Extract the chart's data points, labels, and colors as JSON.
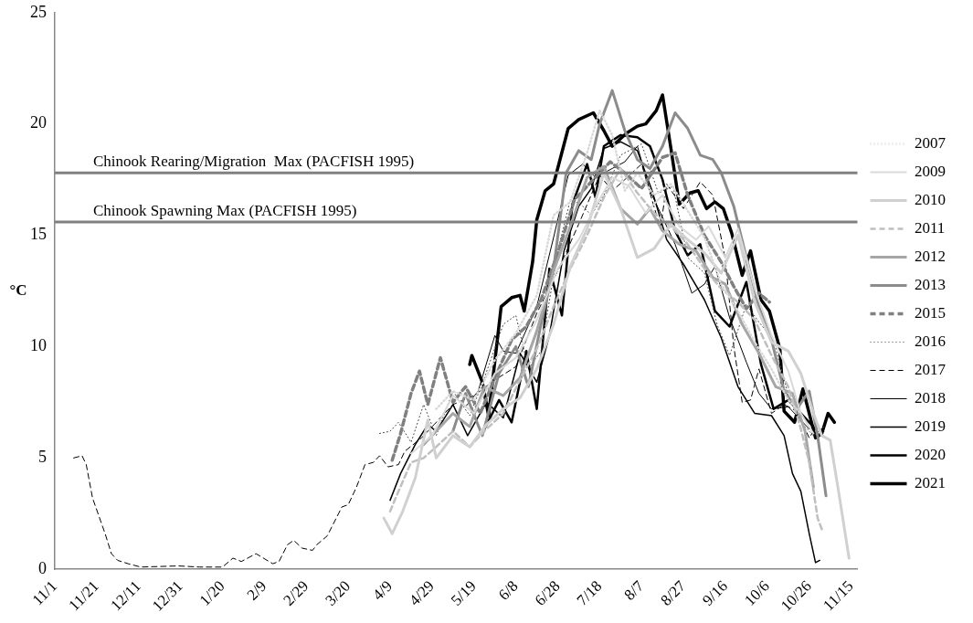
{
  "chart_data": {
    "type": "line",
    "ylabel": "°C",
    "xlim": [
      "2019-11-01",
      "2020-11-18"
    ],
    "ylim": [
      0,
      25
    ],
    "yticks": [
      0,
      5,
      10,
      15,
      20,
      25
    ],
    "xticks": [
      {
        "value": "2019-11-01",
        "label": "11/1"
      },
      {
        "value": "2019-11-21",
        "label": "11/21"
      },
      {
        "value": "2019-12-11",
        "label": "12/11"
      },
      {
        "value": "2019-12-31",
        "label": "12/31"
      },
      {
        "value": "2020-01-20",
        "label": "1/20"
      },
      {
        "value": "2020-02-09",
        "label": "2/9"
      },
      {
        "value": "2020-02-29",
        "label": "2/29"
      },
      {
        "value": "2020-03-20",
        "label": "3/20"
      },
      {
        "value": "2020-04-09",
        "label": "4/9"
      },
      {
        "value": "2020-04-29",
        "label": "4/29"
      },
      {
        "value": "2020-05-19",
        "label": "5/19"
      },
      {
        "value": "2020-06-08",
        "label": "6/8"
      },
      {
        "value": "2020-06-28",
        "label": "6/28"
      },
      {
        "value": "2020-07-18",
        "label": "7/18"
      },
      {
        "value": "2020-08-07",
        "label": "8/7"
      },
      {
        "value": "2020-08-27",
        "label": "8/27"
      },
      {
        "value": "2020-09-16",
        "label": "9/16"
      },
      {
        "value": "2020-10-06",
        "label": "10/6"
      },
      {
        "value": "2020-10-26",
        "label": "10/26"
      },
      {
        "value": "2020-11-15",
        "label": "11/15"
      }
    ],
    "grid": false,
    "legend": "right",
    "marker": "none",
    "ref_lines": [
      {
        "axis": "y",
        "value": 17.8,
        "label": "Chinook Rearing/Migration  Max (PACFISH 1995)",
        "color": "#808080"
      },
      {
        "axis": "y",
        "value": 15.6,
        "label": "Chinook Spawning Max (PACFISH 1995)",
        "color": "#808080"
      }
    ],
    "series": [
      {
        "name": "2007",
        "color": "#d9d9d9",
        "line_style": "dotted",
        "x": [
          "2020-05-01",
          "2020-05-09",
          "2020-05-19",
          "2020-05-29",
          "2020-06-08",
          "2020-06-18",
          "2020-06-26",
          "2020-07-04",
          "2020-07-12",
          "2020-07-18",
          "2020-07-24",
          "2020-07-30",
          "2020-08-05",
          "2020-08-13",
          "2020-08-21",
          "2020-08-29",
          "2020-09-06",
          "2020-09-14",
          "2020-09-22",
          "2020-09-30",
          "2020-10-08",
          "2020-10-16",
          "2020-10-22"
        ],
        "values": [
          7.2,
          8.0,
          7.6,
          9.4,
          10.6,
          12.3,
          15.9,
          16.5,
          18.7,
          20.6,
          19.5,
          17.0,
          17.8,
          16.8,
          17.3,
          16.1,
          14.9,
          12.8,
          11.6,
          10.2,
          9.0,
          7.6,
          7.0
        ]
      },
      {
        "name": "2009",
        "color": "#d9d9d9",
        "line_style": "solid",
        "x": [
          "2020-04-19",
          "2020-04-29",
          "2020-05-09",
          "2020-05-19",
          "2020-05-29",
          "2020-06-08",
          "2020-06-18",
          "2020-06-28",
          "2020-07-08",
          "2020-07-16",
          "2020-07-24",
          "2020-08-01",
          "2020-08-09",
          "2020-08-17",
          "2020-08-25",
          "2020-09-02",
          "2020-09-08",
          "2020-09-16",
          "2020-09-22",
          "2020-09-30",
          "2020-10-08",
          "2020-10-16",
          "2020-10-22",
          "2020-10-28"
        ],
        "values": [
          5.2,
          6.0,
          7.8,
          7.0,
          8.8,
          9.5,
          11.2,
          13.5,
          14.8,
          16.3,
          17.6,
          17.2,
          16.0,
          16.8,
          15.4,
          14.8,
          15.4,
          14.0,
          15.3,
          12.6,
          10.5,
          8.9,
          7.0,
          6.1
        ]
      },
      {
        "name": "2010",
        "color": "#d0d0d0",
        "line_style": "solid",
        "x": [
          "2020-04-06",
          "2020-04-10",
          "2020-04-15",
          "2020-04-21",
          "2020-04-27",
          "2020-05-01",
          "2020-05-09",
          "2020-05-17",
          "2020-05-25",
          "2020-06-02",
          "2020-06-10",
          "2020-06-18",
          "2020-06-26",
          "2020-07-04",
          "2020-07-12",
          "2020-07-20",
          "2020-07-28",
          "2020-08-05",
          "2020-08-13",
          "2020-08-21",
          "2020-08-29",
          "2020-09-06",
          "2020-09-14",
          "2020-09-22",
          "2020-09-30",
          "2020-10-08",
          "2020-10-16",
          "2020-10-22",
          "2020-10-28",
          "2020-11-01",
          "2020-11-05",
          "2020-11-09",
          "2020-11-14"
        ],
        "values": [
          2.3,
          1.6,
          2.6,
          4.1,
          6.7,
          5.0,
          6.0,
          5.5,
          6.5,
          7.2,
          7.7,
          9.0,
          11.0,
          13.6,
          15.3,
          17.8,
          16.2,
          14.0,
          14.4,
          15.5,
          14.8,
          14.2,
          13.3,
          15.0,
          12.0,
          10.2,
          9.8,
          8.8,
          7.0,
          6.0,
          5.8,
          3.5,
          0.5
        ]
      },
      {
        "name": "2011",
        "color": "#bfbfbf",
        "line_style": "dashed",
        "x": [
          "2020-04-09",
          "2020-04-13",
          "2020-04-19",
          "2020-04-25",
          "2020-05-01",
          "2020-05-09",
          "2020-05-17",
          "2020-05-25",
          "2020-06-02",
          "2020-06-10",
          "2020-06-18",
          "2020-06-26",
          "2020-07-04",
          "2020-07-12",
          "2020-07-20",
          "2020-07-28",
          "2020-08-05",
          "2020-08-13",
          "2020-08-21",
          "2020-08-29",
          "2020-09-06",
          "2020-09-14",
          "2020-09-22",
          "2020-09-30",
          "2020-10-08",
          "2020-10-16",
          "2020-10-22",
          "2020-10-26",
          "2020-10-30",
          "2020-11-01"
        ],
        "values": [
          2.6,
          3.5,
          4.8,
          5.0,
          5.5,
          6.2,
          5.5,
          6.3,
          7.0,
          8.5,
          9.9,
          11.8,
          13.5,
          15.0,
          16.7,
          18.0,
          16.9,
          16.0,
          15.4,
          14.6,
          13.5,
          12.6,
          12.0,
          11.2,
          9.6,
          8.2,
          6.3,
          4.8,
          2.3,
          1.8
        ]
      },
      {
        "name": "2012",
        "color": "#a6a6a6",
        "line_style": "solid",
        "x": [
          "2020-04-25",
          "2020-05-01",
          "2020-05-09",
          "2020-05-17",
          "2020-05-24",
          "2020-06-02",
          "2020-06-10",
          "2020-06-18",
          "2020-06-26",
          "2020-07-04",
          "2020-07-12",
          "2020-07-20",
          "2020-07-28",
          "2020-08-05",
          "2020-08-11",
          "2020-08-17",
          "2020-08-25",
          "2020-09-02",
          "2020-09-10",
          "2020-09-16",
          "2020-09-24",
          "2020-10-02",
          "2020-10-10",
          "2020-10-18",
          "2020-10-24",
          "2020-10-28"
        ],
        "values": [
          5.6,
          6.2,
          7.0,
          6.4,
          8.2,
          7.8,
          8.6,
          10.7,
          13.4,
          15.4,
          17.6,
          18.1,
          16.2,
          15.5,
          16.2,
          15.2,
          14.6,
          14.3,
          13.1,
          12.8,
          11.0,
          9.7,
          8.2,
          7.9,
          6.2,
          3.7
        ]
      },
      {
        "name": "2013",
        "color": "#8c8c8c",
        "line_style": "solid",
        "x": [
          "2020-05-09",
          "2020-05-15",
          "2020-05-23",
          "2020-05-31",
          "2020-06-08",
          "2020-06-14",
          "2020-06-20",
          "2020-06-26",
          "2020-07-02",
          "2020-07-08",
          "2020-07-14",
          "2020-07-18",
          "2020-07-24",
          "2020-07-30",
          "2020-08-05",
          "2020-08-11",
          "2020-08-17",
          "2020-08-23",
          "2020-08-29",
          "2020-09-04",
          "2020-09-10",
          "2020-09-14",
          "2020-09-20",
          "2020-09-26",
          "2020-10-02",
          "2020-10-08",
          "2020-10-14",
          "2020-10-20",
          "2020-10-26",
          "2020-10-30",
          "2020-11-03"
        ],
        "values": [
          6.2,
          7.9,
          6.0,
          8.8,
          10.0,
          8.2,
          11.0,
          13.5,
          17.8,
          18.8,
          18.4,
          20.0,
          21.5,
          19.7,
          18.4,
          18.0,
          19.0,
          20.5,
          19.8,
          18.6,
          18.4,
          17.8,
          16.3,
          14.0,
          11.8,
          10.3,
          8.0,
          7.2,
          8.0,
          6.0,
          3.3
        ]
      },
      {
        "name": "2015",
        "color": "#808080",
        "line_style": "dashed",
        "x": [
          "2020-04-10",
          "2020-04-14",
          "2020-04-19",
          "2020-04-23",
          "2020-04-27",
          "2020-05-03",
          "2020-05-09",
          "2020-05-15",
          "2020-05-22",
          "2020-05-29",
          "2020-06-06",
          "2020-06-13",
          "2020-06-20",
          "2020-06-28",
          "2020-07-06",
          "2020-07-14",
          "2020-07-23",
          "2020-07-30",
          "2020-08-07",
          "2020-08-17",
          "2020-08-23",
          "2020-08-29",
          "2020-09-06",
          "2020-09-14",
          "2020-09-20",
          "2020-09-26",
          "2020-10-02",
          "2020-10-07"
        ],
        "values": [
          4.9,
          6.1,
          7.9,
          8.9,
          7.4,
          9.5,
          7.5,
          8.2,
          7.0,
          8.6,
          10.3,
          10.9,
          12.1,
          14.2,
          16.6,
          17.4,
          18.3,
          17.8,
          17.1,
          18.5,
          18.7,
          16.8,
          15.0,
          13.8,
          12.7,
          11.7,
          12.4,
          12.0
        ]
      },
      {
        "name": "2016",
        "color": "#404040",
        "line_style": "dotted",
        "x": [
          "2020-04-04",
          "2020-04-09",
          "2020-04-13",
          "2020-04-19",
          "2020-04-25",
          "2020-05-01",
          "2020-05-09",
          "2020-05-17",
          "2020-05-24",
          "2020-06-02",
          "2020-06-08",
          "2020-06-14",
          "2020-06-20",
          "2020-06-28",
          "2020-07-04",
          "2020-07-09",
          "2020-07-14",
          "2020-07-20",
          "2020-07-28",
          "2020-08-07",
          "2020-08-15",
          "2020-08-22",
          "2020-08-29",
          "2020-09-06",
          "2020-09-12",
          "2020-09-18",
          "2020-09-26",
          "2020-10-02",
          "2020-10-09",
          "2020-10-16",
          "2020-10-22",
          "2020-10-28",
          "2020-11-02"
        ],
        "values": [
          6.1,
          6.2,
          6.6,
          5.7,
          7.4,
          6.0,
          8.0,
          6.9,
          8.6,
          11.0,
          11.4,
          9.0,
          9.8,
          14.3,
          16.6,
          16.4,
          15.9,
          16.8,
          18.6,
          19.1,
          16.9,
          17.2,
          14.0,
          13.3,
          11.0,
          9.6,
          11.9,
          11.1,
          10.3,
          7.8,
          6.6,
          6.0,
          6.4
        ]
      },
      {
        "name": "2017",
        "color": "#000000",
        "line_style": "dashed",
        "x": [
          "2019-11-10",
          "2019-11-14",
          "2019-11-16",
          "2019-11-19",
          "2019-11-25",
          "2019-11-28",
          "2019-12-01",
          "2019-12-06",
          "2019-12-12",
          "2019-12-30",
          "2020-01-09",
          "2020-01-20",
          "2020-01-25",
          "2020-01-29",
          "2020-02-05",
          "2020-02-13",
          "2020-02-16",
          "2020-02-20",
          "2020-02-23",
          "2020-02-27",
          "2020-03-03",
          "2020-03-05",
          "2020-03-10",
          "2020-03-17",
          "2020-03-20",
          "2020-03-24",
          "2020-03-28",
          "2020-04-01",
          "2020-04-04",
          "2020-04-08",
          "2020-04-13",
          "2020-04-16",
          "2020-04-24",
          "2020-04-30",
          "2020-05-09",
          "2020-05-19",
          "2020-05-29",
          "2020-06-08",
          "2020-06-18",
          "2020-06-28",
          "2020-07-08",
          "2020-07-18",
          "2020-07-24",
          "2020-07-30",
          "2020-08-07",
          "2020-08-16",
          "2020-08-19",
          "2020-08-27",
          "2020-09-04",
          "2020-09-10",
          "2020-09-16",
          "2020-09-20",
          "2020-09-24",
          "2020-09-28",
          "2020-10-02",
          "2020-10-08",
          "2020-10-14",
          "2020-10-20",
          "2020-10-26",
          "2020-10-30",
          "2020-11-02"
        ],
        "values": [
          5.0,
          5.1,
          4.7,
          3.2,
          1.6,
          0.7,
          0.4,
          0.25,
          0.1,
          0.15,
          0.1,
          0.1,
          0.5,
          0.35,
          0.7,
          0.25,
          0.35,
          1.1,
          1.3,
          0.95,
          0.85,
          1.1,
          1.5,
          2.8,
          2.9,
          3.7,
          4.7,
          4.8,
          5.1,
          4.6,
          4.7,
          5.3,
          5.9,
          6.5,
          7.4,
          7.8,
          8.5,
          9.1,
          11.5,
          13.4,
          15.5,
          17.7,
          17.0,
          17.5,
          18.2,
          15.3,
          17.3,
          16.2,
          17.4,
          16.8,
          13.9,
          10.0,
          7.5,
          7.6,
          9.0,
          7.0,
          7.4,
          7.1,
          5.9,
          6.5,
          6.2
        ]
      },
      {
        "name": "2018",
        "color": "#000000",
        "line_style": "solid",
        "x": [
          "2020-05-15",
          "2020-05-21",
          "2020-05-29",
          "2020-06-02",
          "2020-06-08",
          "2020-06-18",
          "2020-06-26",
          "2020-07-03",
          "2020-07-10",
          "2020-07-16",
          "2020-07-24",
          "2020-07-30",
          "2020-08-05",
          "2020-08-11",
          "2020-08-17",
          "2020-08-23",
          "2020-08-31",
          "2020-09-06",
          "2020-09-11",
          "2020-09-18",
          "2020-09-26",
          "2020-10-02",
          "2020-10-08",
          "2020-10-16",
          "2020-10-22",
          "2020-10-26"
        ],
        "values": [
          7.3,
          8.0,
          10.5,
          9.8,
          9.7,
          11.8,
          14.9,
          17.7,
          18.2,
          17.6,
          18.0,
          18.3,
          19.0,
          17.0,
          15.8,
          14.6,
          12.4,
          12.8,
          13.6,
          11.3,
          9.3,
          7.9,
          7.2,
          7.3,
          6.7,
          6.3
        ]
      },
      {
        "name": "2019",
        "color": "#000000",
        "line_style": "solid",
        "x": [
          "2020-04-09",
          "2020-04-14",
          "2020-04-21",
          "2020-04-27",
          "2020-05-01",
          "2020-05-09",
          "2020-05-16",
          "2020-05-25",
          "2020-06-02",
          "2020-06-10",
          "2020-06-18",
          "2020-06-24",
          "2020-07-01",
          "2020-07-08",
          "2020-07-14",
          "2020-07-20",
          "2020-07-28",
          "2020-08-05",
          "2020-08-12",
          "2020-08-19",
          "2020-08-27",
          "2020-09-06",
          "2020-09-14",
          "2020-09-22",
          "2020-09-30",
          "2020-10-08",
          "2020-10-14",
          "2020-10-18",
          "2020-10-22",
          "2020-10-26",
          "2020-10-29",
          "2020-10-31"
        ],
        "values": [
          3.1,
          4.3,
          5.6,
          6.5,
          6.2,
          7.4,
          6.0,
          7.5,
          6.8,
          9.7,
          8.4,
          10.5,
          14.3,
          16.3,
          17.1,
          18.9,
          19.2,
          18.8,
          17.0,
          14.8,
          13.7,
          12.1,
          10.4,
          8.2,
          7.0,
          6.9,
          6.0,
          4.3,
          3.5,
          1.6,
          0.3,
          0.4
        ]
      },
      {
        "name": "2020",
        "color": "#000000",
        "line_style": "solid",
        "x": [
          "2020-05-24",
          "2020-05-31",
          "2020-06-06",
          "2020-06-13",
          "2020-06-18",
          "2020-06-24",
          "2020-06-30",
          "2020-07-05",
          "2020-07-12",
          "2020-07-16",
          "2020-07-20",
          "2020-07-28",
          "2020-08-05",
          "2020-08-11",
          "2020-08-17",
          "2020-08-23",
          "2020-08-29",
          "2020-09-04",
          "2020-09-11",
          "2020-09-18",
          "2020-09-26",
          "2020-10-03",
          "2020-10-09",
          "2020-10-16",
          "2020-10-24",
          "2020-10-29"
        ],
        "values": [
          6.3,
          7.6,
          6.6,
          9.8,
          7.2,
          13.5,
          11.4,
          16.4,
          18.2,
          16.7,
          19.0,
          19.5,
          19.4,
          19.0,
          17.5,
          15.2,
          14.1,
          14.6,
          11.6,
          10.9,
          12.9,
          9.2,
          7.2,
          7.6,
          6.8,
          6.3
        ]
      },
      {
        "name": "2021",
        "color": "#000000",
        "line_style": "solid",
        "x": [
          "2020-05-17",
          "2020-05-18",
          "2020-05-23",
          "2020-05-26",
          "2020-06-01",
          "2020-06-06",
          "2020-06-10",
          "2020-06-12",
          "2020-06-16",
          "2020-06-18",
          "2020-06-22",
          "2020-06-26",
          "2020-07-03",
          "2020-07-08",
          "2020-07-15",
          "2020-07-20",
          "2020-07-24",
          "2020-07-31",
          "2020-08-05",
          "2020-08-09",
          "2020-08-14",
          "2020-08-17",
          "2020-08-21",
          "2020-08-25",
          "2020-08-30",
          "2020-09-03",
          "2020-09-07",
          "2020-09-11",
          "2020-09-15",
          "2020-09-19",
          "2020-09-24",
          "2020-09-28",
          "2020-10-03",
          "2020-10-07",
          "2020-10-12",
          "2020-10-14",
          "2020-10-19",
          "2020-10-23",
          "2020-10-29",
          "2020-11-01",
          "2020-11-04",
          "2020-11-07"
        ],
        "values": [
          9.2,
          9.6,
          8.4,
          6.9,
          11.8,
          12.2,
          12.3,
          11.6,
          13.8,
          15.7,
          17.0,
          17.3,
          19.8,
          20.2,
          20.5,
          19.7,
          19.0,
          19.6,
          19.9,
          20.0,
          20.6,
          21.3,
          18.9,
          16.4,
          16.9,
          17.0,
          16.2,
          16.5,
          16.2,
          15.1,
          13.2,
          14.3,
          12.1,
          11.6,
          9.9,
          7.1,
          6.6,
          8.1,
          5.9,
          6.1,
          7.0,
          6.6
        ]
      }
    ]
  }
}
